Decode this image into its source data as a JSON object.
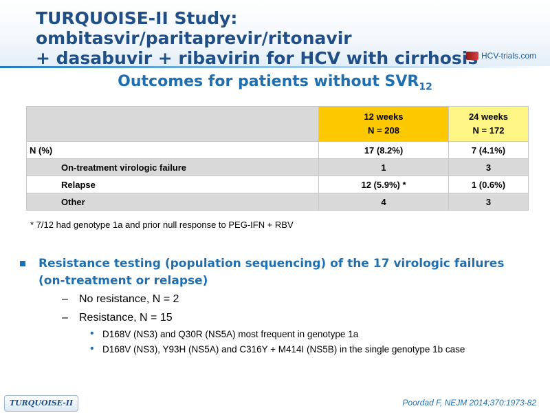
{
  "header": {
    "title_line1": "TURQUOISE-II Study: ombitasvir/paritaprevir/ritonavir",
    "title_line2": "+ dasabuvir + ribavirin for HCV with cirrhosis",
    "logo_text": "HCV-trials.com"
  },
  "subtitle": {
    "text": "Outcomes for patients without SVR",
    "subscript": "12"
  },
  "table": {
    "columns": [
      {
        "line1": "12 weeks",
        "line2": "N = 208"
      },
      {
        "line1": "24 weeks",
        "line2": "N = 172"
      }
    ],
    "rows": [
      {
        "label": "N (%)",
        "values": [
          "17 (8.2%)",
          "7 (4.1%)"
        ]
      },
      {
        "label": "On-treatment virologic failure",
        "values": [
          "1",
          "3"
        ]
      },
      {
        "label": "Relapse",
        "values": [
          "12 (5.9%) *",
          "1 (0.6%)"
        ]
      },
      {
        "label": "Other",
        "values": [
          "4",
          "3"
        ]
      }
    ]
  },
  "footnote": "* 7/12 had genotype 1a and prior null response to PEG-IFN + RBV",
  "bullets": {
    "main_line1": "Resistance testing (population sequencing) of the 17 virologic failures",
    "main_line2": "(on-treatment or relapse)",
    "sub": [
      "No resistance, N = 2",
      "Resistance, N = 15"
    ],
    "subsub": [
      "D168V (NS3) and Q30R (NS5A) most frequent in genotype 1a",
      "D168V (NS3), Y93H (NS5A) and C316Y + M414I (NS5B) in the single genotype 1b case"
    ]
  },
  "footer": {
    "tag": "TURQUOISE-II",
    "citation": "Poordad F, NEJM 2014;370:1973-82"
  }
}
